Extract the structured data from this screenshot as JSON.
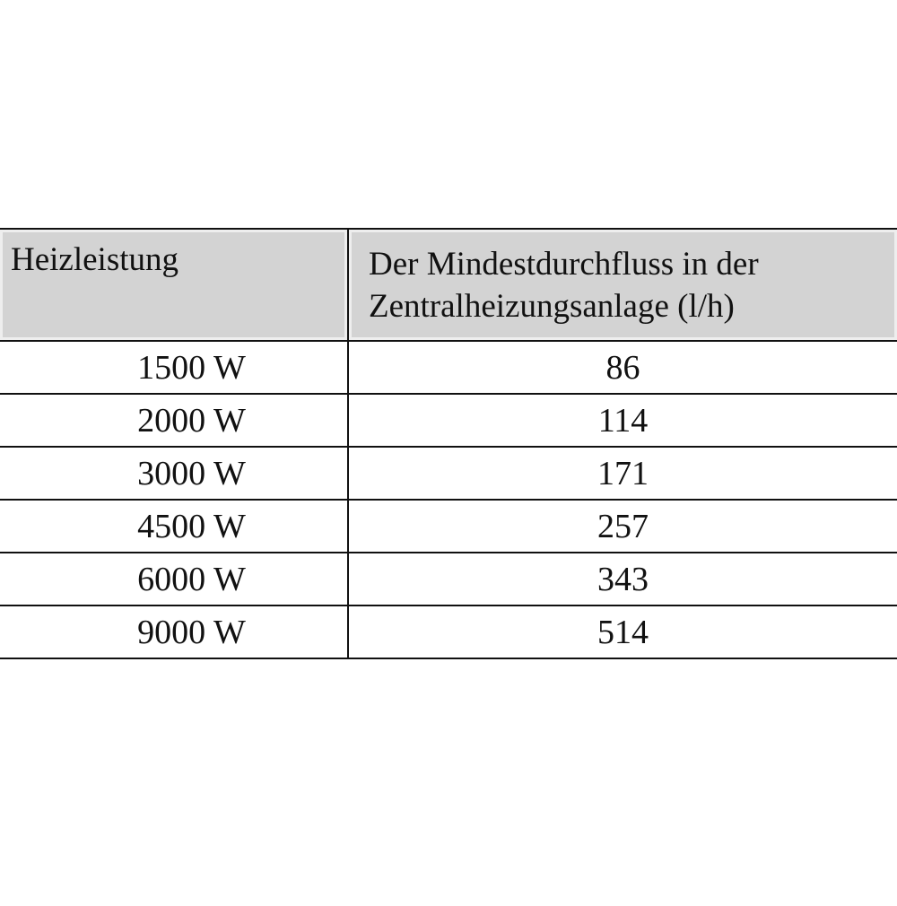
{
  "table": {
    "headers": [
      "Heizleistung",
      "Der Mindestdurchfluss in der Zentralheizungsanlage (l/h)"
    ],
    "header_line1": "Der Mindestdurchfluss in der",
    "header_line2": "Zentralheizungsanlage (l/h)",
    "header_bg": "#d3d3d3",
    "rows": [
      [
        "1500 W",
        "86"
      ],
      [
        "2000 W",
        "114"
      ],
      [
        "3000 W",
        "171"
      ],
      [
        "4500 W",
        "257"
      ],
      [
        "6000 W",
        "343"
      ],
      [
        "9000 W",
        "514"
      ]
    ]
  }
}
